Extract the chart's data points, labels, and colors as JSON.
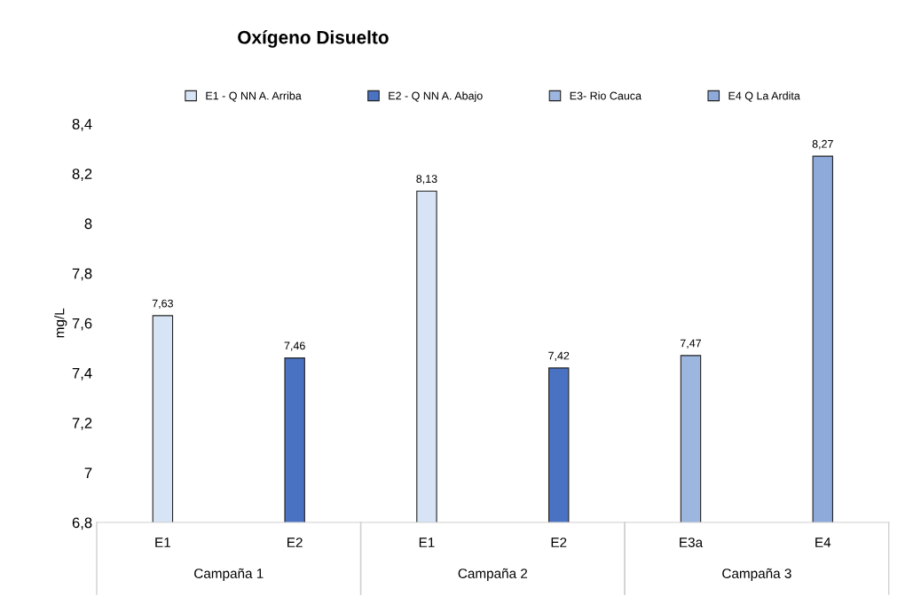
{
  "chart_data": {
    "type": "bar",
    "title": "Oxígeno Disuelto",
    "ylabel": "mg/L",
    "categories": [
      "E1",
      "E2",
      "E1",
      "E2",
      "E3a",
      "E4"
    ],
    "series": [
      {
        "name": "E1 - Q NN A. Arriba",
        "color": "#d6e4f5",
        "values": [
          7.63,
          null,
          8.13,
          null,
          null,
          null
        ],
        "value_labels": [
          "7,63",
          null,
          "8,13",
          null,
          null,
          null
        ]
      },
      {
        "name": "E2 - Q NN A. Abajo",
        "color": "#4a72c2",
        "values": [
          null,
          7.46,
          null,
          7.42,
          null,
          null
        ],
        "value_labels": [
          null,
          "7,46",
          null,
          "7,42",
          null,
          null
        ]
      },
      {
        "name": "E3- Rio Cauca",
        "color": "#9db6e0",
        "values": [
          null,
          null,
          null,
          null,
          7.47,
          null
        ],
        "value_labels": [
          null,
          null,
          null,
          null,
          "7,47",
          null
        ]
      },
      {
        "name": "E4 Q La Ardita",
        "color": "#8eaadb",
        "values": [
          null,
          null,
          null,
          null,
          null,
          8.27
        ],
        "value_labels": [
          null,
          null,
          null,
          null,
          null,
          "8,27"
        ]
      }
    ],
    "ylim": [
      6.8,
      8.4
    ],
    "yticks": [
      {
        "value": 6.8,
        "label": "6,8"
      },
      {
        "value": 7,
        "label": "7"
      },
      {
        "value": 7.2,
        "label": "7,2"
      },
      {
        "value": 7.4,
        "label": "7,4"
      },
      {
        "value": 7.6,
        "label": "7,6"
      },
      {
        "value": 7.8,
        "label": "7,8"
      },
      {
        "value": 8,
        "label": "8"
      },
      {
        "value": 8.2,
        "label": "8,2"
      },
      {
        "value": 8.4,
        "label": "8,4"
      }
    ],
    "annotations": [
      "Campaña 1",
      "Campaña 2",
      "Campaña 3"
    ],
    "legend": "top",
    "grid": false
  }
}
